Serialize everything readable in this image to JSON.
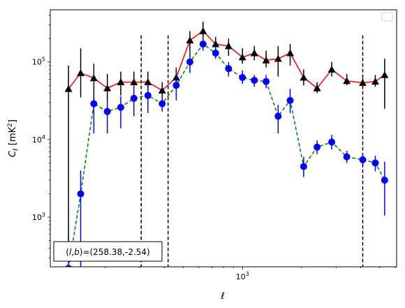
{
  "chart_data": {
    "type": "line",
    "title": "",
    "xlabel": "ℓ",
    "ylabel": "C_ℓ [mK²]",
    "x_scale": "log",
    "y_scale": "log",
    "xlim": [
      105,
      6100
    ],
    "ylim": [
      230,
      470000
    ],
    "x_tick_labels": [
      {
        "value": 1000,
        "text": "10^3"
      }
    ],
    "y_tick_labels": [
      {
        "value": 1000,
        "text": "10^3"
      },
      {
        "value": 10000,
        "text": "10^4"
      },
      {
        "value": 100000,
        "text": "10^5"
      }
    ],
    "grid": false,
    "legend": {
      "placement": "top-right",
      "entries": []
    },
    "annotation": "(l,b)=(258.38,-2.54)",
    "vlines": [
      305,
      418,
      4100
    ],
    "colors": {
      "series_a_line": "#ff0000",
      "series_a_marker": "#000000",
      "series_b_line": "#008000",
      "series_b_marker": "#0000ff"
    },
    "series": [
      {
        "line_style": "solid",
        "marker": "triangle",
        "points": [
          {
            "x": 130,
            "y": 45000,
            "lo": 500,
            "hi": 90000
          },
          {
            "x": 150,
            "y": 72000,
            "lo": 35000,
            "hi": 150000
          },
          {
            "x": 175,
            "y": 62000,
            "lo": 30000,
            "hi": 95000
          },
          {
            "x": 205,
            "y": 46000,
            "lo": 32000,
            "hi": 70000
          },
          {
            "x": 240,
            "y": 55000,
            "lo": 37000,
            "hi": 75000
          },
          {
            "x": 280,
            "y": 55000,
            "lo": 38000,
            "hi": 75000
          },
          {
            "x": 330,
            "y": 55000,
            "lo": 40000,
            "hi": 75000
          },
          {
            "x": 390,
            "y": 43000,
            "lo": 35000,
            "hi": 55000
          },
          {
            "x": 460,
            "y": 63000,
            "lo": 45000,
            "hi": 85000
          },
          {
            "x": 540,
            "y": 190000,
            "lo": 140000,
            "hi": 250000
          },
          {
            "x": 630,
            "y": 250000,
            "lo": 190000,
            "hi": 330000
          },
          {
            "x": 730,
            "y": 170000,
            "lo": 140000,
            "hi": 210000
          },
          {
            "x": 850,
            "y": 160000,
            "lo": 120000,
            "hi": 200000
          },
          {
            "x": 1000,
            "y": 115000,
            "lo": 95000,
            "hi": 150000
          },
          {
            "x": 1150,
            "y": 130000,
            "lo": 105000,
            "hi": 160000
          },
          {
            "x": 1320,
            "y": 105000,
            "lo": 85000,
            "hi": 140000
          },
          {
            "x": 1520,
            "y": 110000,
            "lo": 65000,
            "hi": 160000
          },
          {
            "x": 1750,
            "y": 130000,
            "lo": 90000,
            "hi": 170000
          },
          {
            "x": 2050,
            "y": 63000,
            "lo": 50000,
            "hi": 80000
          },
          {
            "x": 2400,
            "y": 46000,
            "lo": 40000,
            "hi": 55000
          },
          {
            "x": 2850,
            "y": 80000,
            "lo": 65000,
            "hi": 100000
          },
          {
            "x": 3400,
            "y": 57000,
            "lo": 50000,
            "hi": 70000
          },
          {
            "x": 4100,
            "y": 54000,
            "lo": 48000,
            "hi": 62000
          },
          {
            "x": 4750,
            "y": 56000,
            "lo": 48000,
            "hi": 68000
          },
          {
            "x": 5300,
            "y": 68000,
            "lo": 25000,
            "hi": 110000
          }
        ]
      },
      {
        "line_style": "dashed",
        "marker": "circle",
        "points": [
          {
            "x": 130,
            "y": 220,
            "lo": 100,
            "hi": 600
          },
          {
            "x": 150,
            "y": 2000,
            "lo": 100,
            "hi": 4000
          },
          {
            "x": 175,
            "y": 29000,
            "lo": 12000,
            "hi": 36000
          },
          {
            "x": 205,
            "y": 23000,
            "lo": 12000,
            "hi": 32000
          },
          {
            "x": 240,
            "y": 26000,
            "lo": 14000,
            "hi": 36000
          },
          {
            "x": 280,
            "y": 34000,
            "lo": 20000,
            "hi": 50000
          },
          {
            "x": 330,
            "y": 37000,
            "lo": 22000,
            "hi": 52000
          },
          {
            "x": 390,
            "y": 29000,
            "lo": 23000,
            "hi": 36000
          },
          {
            "x": 460,
            "y": 50000,
            "lo": 32000,
            "hi": 70000
          },
          {
            "x": 540,
            "y": 100000,
            "lo": 72000,
            "hi": 140000
          },
          {
            "x": 630,
            "y": 170000,
            "lo": 140000,
            "hi": 210000
          },
          {
            "x": 730,
            "y": 130000,
            "lo": 110000,
            "hi": 160000
          },
          {
            "x": 850,
            "y": 82000,
            "lo": 65000,
            "hi": 100000
          },
          {
            "x": 1000,
            "y": 63000,
            "lo": 52000,
            "hi": 78000
          },
          {
            "x": 1150,
            "y": 58000,
            "lo": 48000,
            "hi": 68000
          },
          {
            "x": 1320,
            "y": 56000,
            "lo": 46000,
            "hi": 68000
          },
          {
            "x": 1520,
            "y": 20000,
            "lo": 12000,
            "hi": 28000
          },
          {
            "x": 1750,
            "y": 32000,
            "lo": 22000,
            "hi": 45000
          },
          {
            "x": 2050,
            "y": 4500,
            "lo": 3300,
            "hi": 6000
          },
          {
            "x": 2400,
            "y": 8000,
            "lo": 6500,
            "hi": 9800
          },
          {
            "x": 2850,
            "y": 9300,
            "lo": 7500,
            "hi": 11500
          },
          {
            "x": 3400,
            "y": 6000,
            "lo": 5000,
            "hi": 7200
          },
          {
            "x": 4100,
            "y": 5500,
            "lo": 4700,
            "hi": 6500
          },
          {
            "x": 4750,
            "y": 5000,
            "lo": 3900,
            "hi": 6200
          },
          {
            "x": 5300,
            "y": 3000,
            "lo": 1050,
            "hi": 5200
          }
        ]
      }
    ]
  }
}
